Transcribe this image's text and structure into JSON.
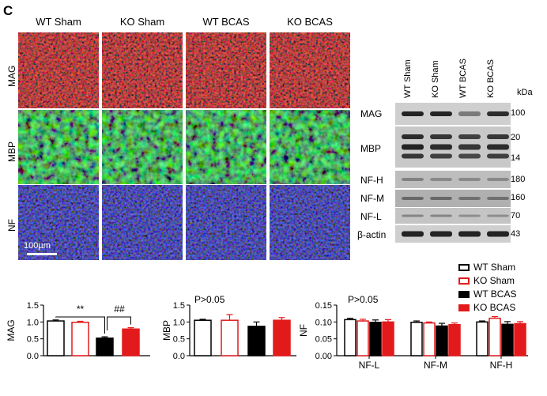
{
  "panel_letter": "C",
  "micrographs": {
    "columns": [
      "WT Sham",
      "KO Sham",
      "WT BCAS",
      "KO BCAS"
    ],
    "rows": [
      {
        "label": "MAG",
        "color": "#d41a1a"
      },
      {
        "label": "MBP",
        "color": "#22c83a"
      },
      {
        "label": "NF",
        "color": "#2424c8"
      }
    ],
    "scale_bar": "100µm"
  },
  "western_blot": {
    "lanes": [
      "WT Sham",
      "KO Sham",
      "WT BCAS",
      "KO BCAS"
    ],
    "kda_label": "kDa",
    "rows": [
      {
        "label": "MAG",
        "markers": [
          "100"
        ]
      },
      {
        "label": "MBP",
        "markers": [
          "20",
          "14"
        ]
      },
      {
        "label": "NF-H",
        "markers": [
          "180"
        ]
      },
      {
        "label": "NF-M",
        "markers": [
          "160"
        ]
      },
      {
        "label": "NF-L",
        "markers": [
          "70"
        ]
      },
      {
        "label": "β-actin",
        "markers": [
          "43"
        ]
      }
    ]
  },
  "legend": [
    {
      "label": "WT Sham",
      "stroke": "#000000",
      "fill": "#ffffff"
    },
    {
      "label": "KO Sham",
      "stroke": "#e31a1c",
      "fill": "#ffffff"
    },
    {
      "label": "WT BCAS",
      "stroke": "#000000",
      "fill": "#000000"
    },
    {
      "label": "KO BCAS",
      "stroke": "#e31a1c",
      "fill": "#e31a1c"
    }
  ],
  "chart_data": [
    {
      "type": "bar",
      "ylabel": "MAG",
      "ylim": [
        0,
        1.5
      ],
      "yticks": [
        "0.0",
        "0.5",
        "1.0",
        "1.5"
      ],
      "categories": [
        "WT Sham",
        "KO Sham",
        "WT BCAS",
        "KO BCAS"
      ],
      "values": [
        1.03,
        0.99,
        0.52,
        0.79
      ],
      "errors": [
        0.03,
        0.03,
        0.04,
        0.04
      ],
      "annotations": [
        "**",
        "##"
      ]
    },
    {
      "type": "bar",
      "ylabel": "MBP",
      "ylim": [
        0,
        1.5
      ],
      "yticks": [
        "0.0",
        "0.5",
        "1.0",
        "1.5"
      ],
      "categories": [
        "WT Sham",
        "KO Sham",
        "WT BCAS",
        "KO BCAS"
      ],
      "values": [
        1.05,
        1.05,
        0.87,
        1.05
      ],
      "errors": [
        0.03,
        0.17,
        0.13,
        0.08
      ],
      "annotations": [
        "P>0.05"
      ]
    },
    {
      "type": "bar",
      "ylabel": "NF",
      "ylim": [
        0,
        0.15
      ],
      "yticks": [
        "0.00",
        "0.05",
        "0.10",
        "0.15"
      ],
      "categories": [
        "NF-L",
        "NF-M",
        "NF-H"
      ],
      "series": [
        {
          "name": "WT Sham",
          "values": [
            0.107,
            0.099,
            0.1
          ],
          "errors": [
            0.004,
            0.004,
            0.003
          ]
        },
        {
          "name": "KO Sham",
          "values": [
            0.103,
            0.097,
            0.111
          ],
          "errors": [
            0.005,
            0.003,
            0.005
          ]
        },
        {
          "name": "WT BCAS",
          "values": [
            0.099,
            0.088,
            0.093
          ],
          "errors": [
            0.007,
            0.008,
            0.008
          ]
        },
        {
          "name": "KO BCAS",
          "values": [
            0.1,
            0.092,
            0.095
          ],
          "errors": [
            0.007,
            0.005,
            0.006
          ]
        }
      ],
      "annotations": [
        "P>0.05"
      ]
    }
  ]
}
